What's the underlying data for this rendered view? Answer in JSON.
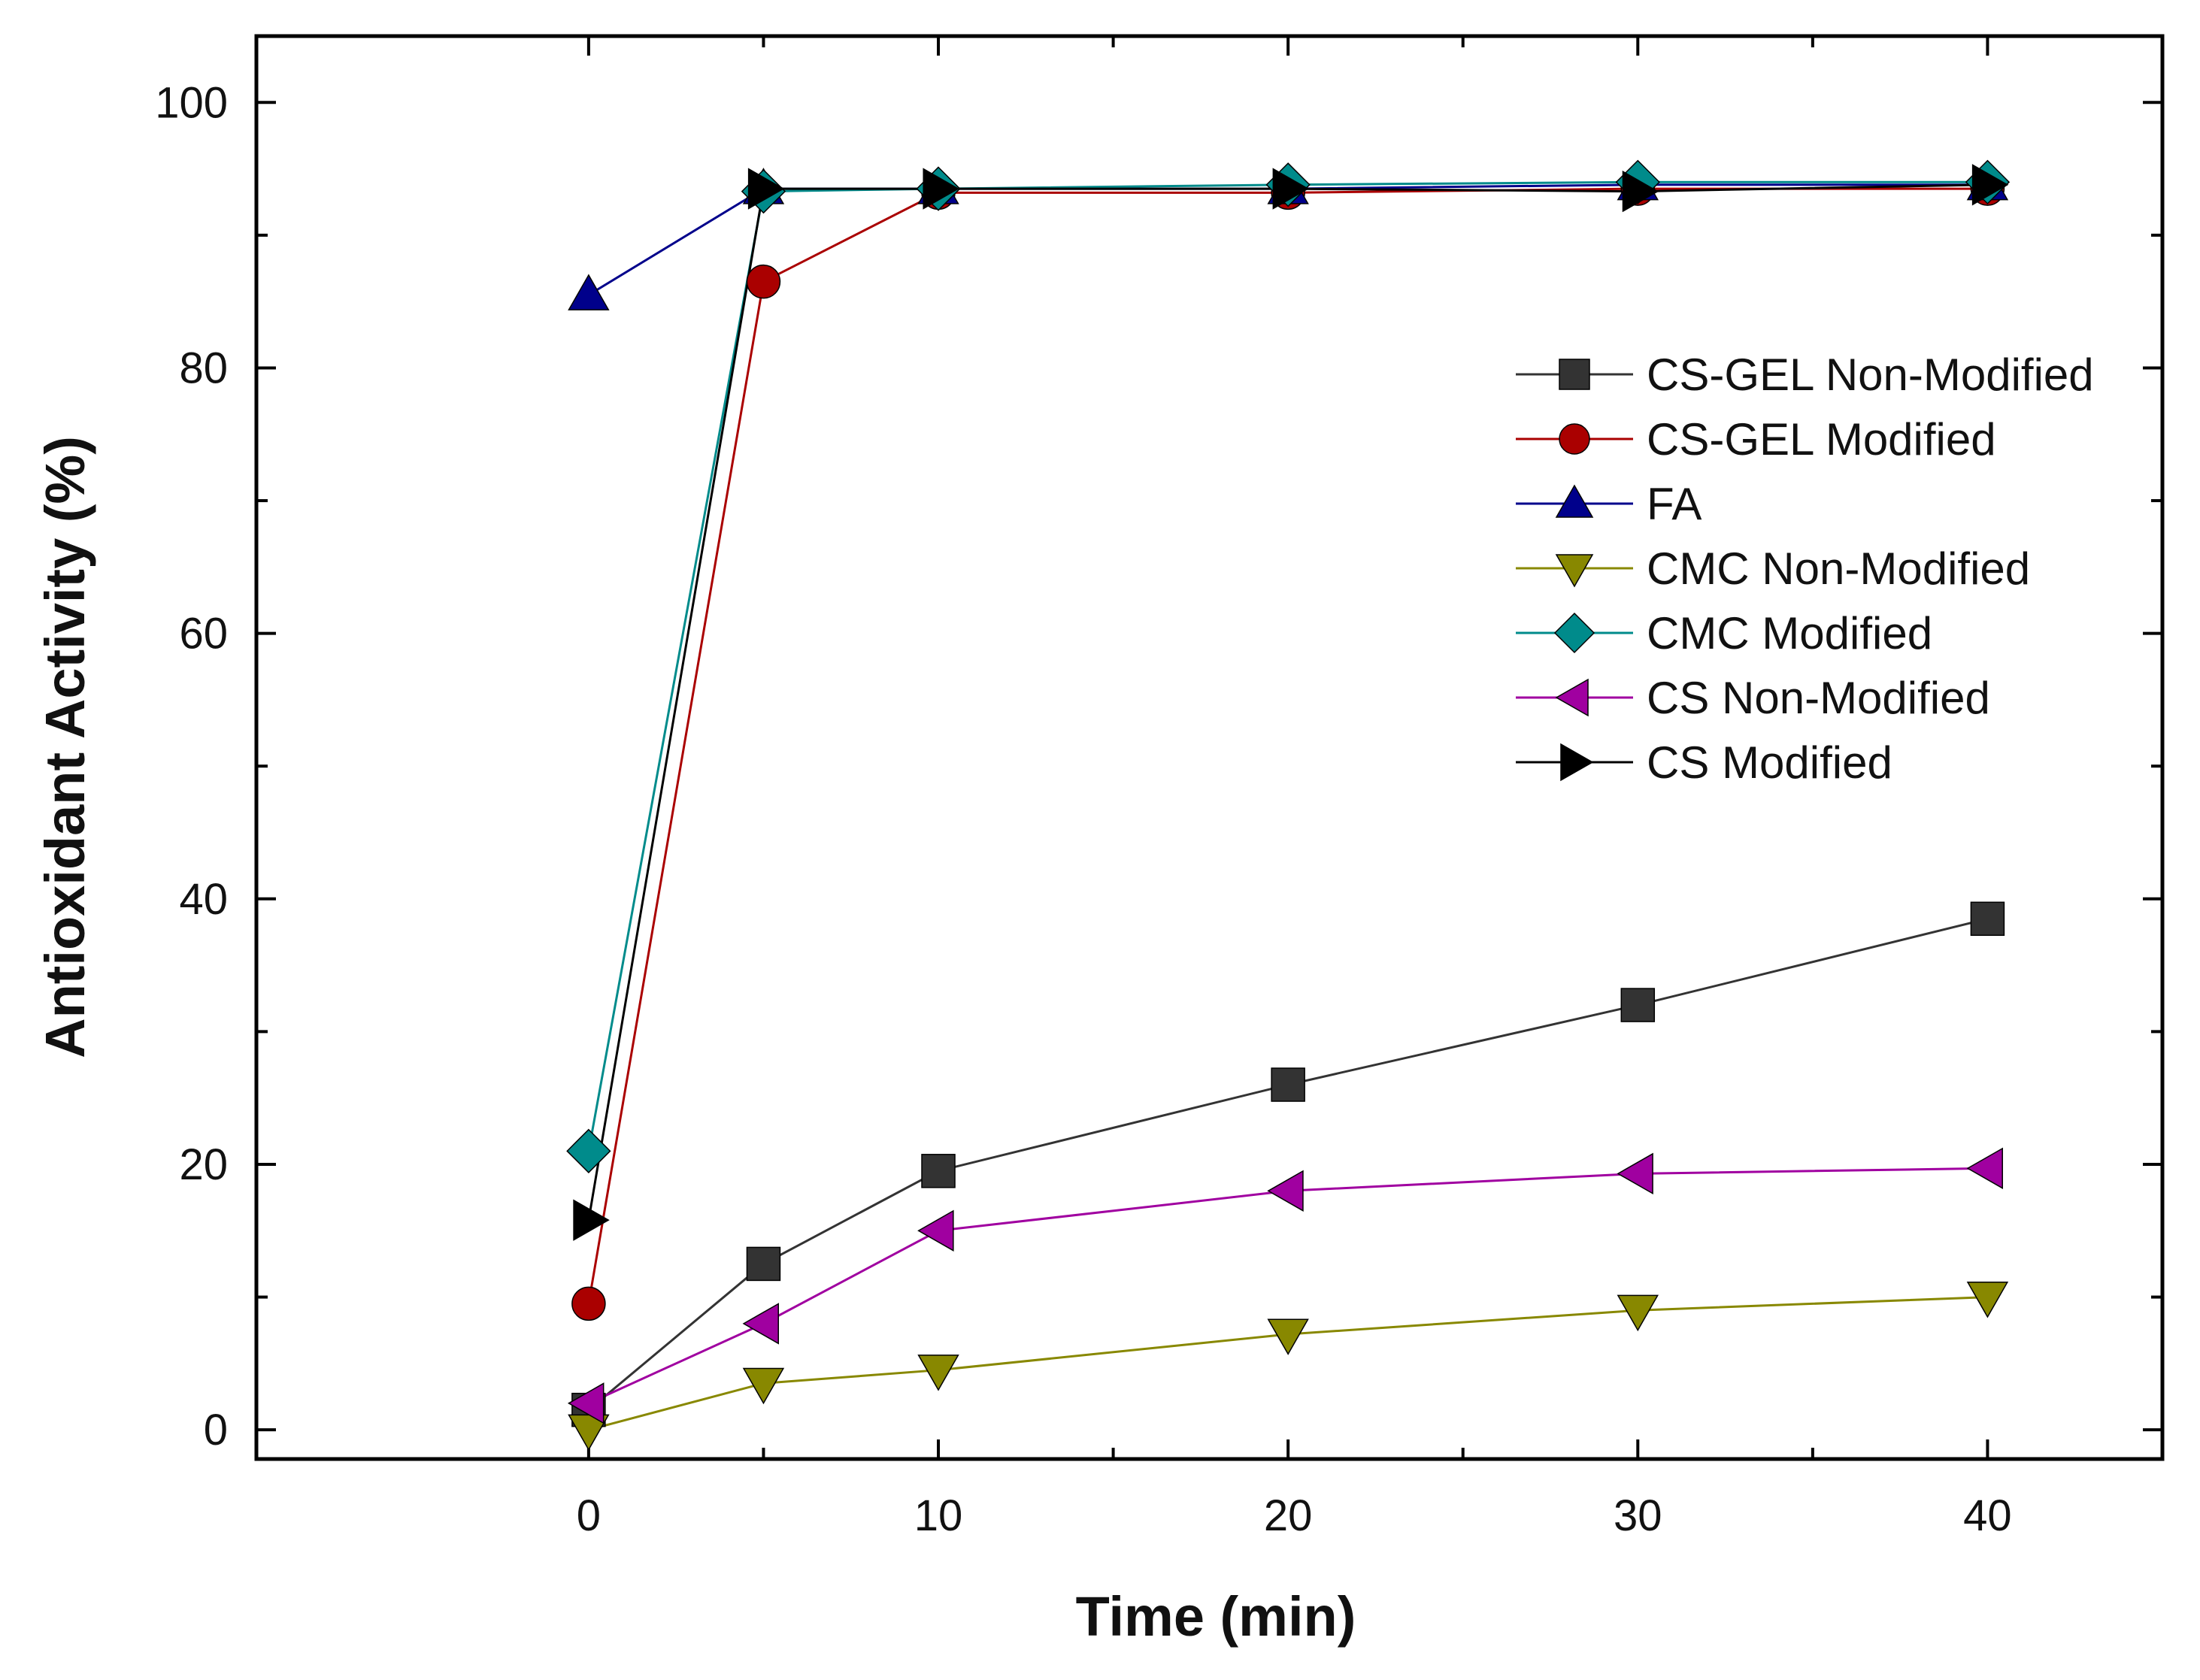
{
  "chart_data": {
    "type": "line",
    "title": "",
    "xlabel": "Time (min)",
    "ylabel": "Antioxidant Activity (%)",
    "xlim": [
      -9.5,
      45
    ],
    "ylim": [
      -2.2,
      105
    ],
    "xticks": [
      0,
      10,
      20,
      30,
      40
    ],
    "yticks": [
      0,
      20,
      40,
      60,
      80,
      100
    ],
    "xtick_labels": [
      "0",
      "10",
      "20",
      "30",
      "40"
    ],
    "ytick_labels": [
      "0",
      "20",
      "40",
      "60",
      "80",
      "100"
    ],
    "x_minor_ticks": [
      5,
      15,
      25,
      35
    ],
    "y_minor_ticks": [
      10,
      30,
      50,
      70,
      90
    ],
    "legend_position": "right",
    "x": [
      0,
      5,
      10,
      20,
      30,
      40
    ],
    "series": [
      {
        "name": "CS-GEL Non-Modified",
        "color": "#333333",
        "marker": "square",
        "values": [
          1.5,
          12.5,
          19.5,
          26,
          32,
          38.5
        ]
      },
      {
        "name": "CS-GEL Modified",
        "color": "#aa0000",
        "marker": "circle",
        "values": [
          9.5,
          86.5,
          93.2,
          93.2,
          93.5,
          93.5
        ]
      },
      {
        "name": "FA",
        "color": "#00008b",
        "marker": "triangle-up",
        "values": [
          85.5,
          93.5,
          93.5,
          93.5,
          93.8,
          93.8
        ]
      },
      {
        "name": "CMC Non-Modified",
        "color": "#888800",
        "marker": "triangle-down",
        "values": [
          0,
          3.5,
          4.5,
          7.2,
          9,
          10
        ]
      },
      {
        "name": "CMC Modified",
        "color": "#008b8b",
        "marker": "diamond",
        "values": [
          21,
          93.3,
          93.5,
          93.8,
          94,
          94
        ]
      },
      {
        "name": "CS Non-Modified",
        "color": "#a000a0",
        "marker": "triangle-left",
        "values": [
          2,
          8,
          15,
          18,
          19.3,
          19.7
        ]
      },
      {
        "name": "CS Modified",
        "color": "#000000",
        "marker": "triangle-right",
        "values": [
          15.8,
          93.5,
          93.5,
          93.5,
          93.3,
          93.8
        ]
      }
    ]
  }
}
